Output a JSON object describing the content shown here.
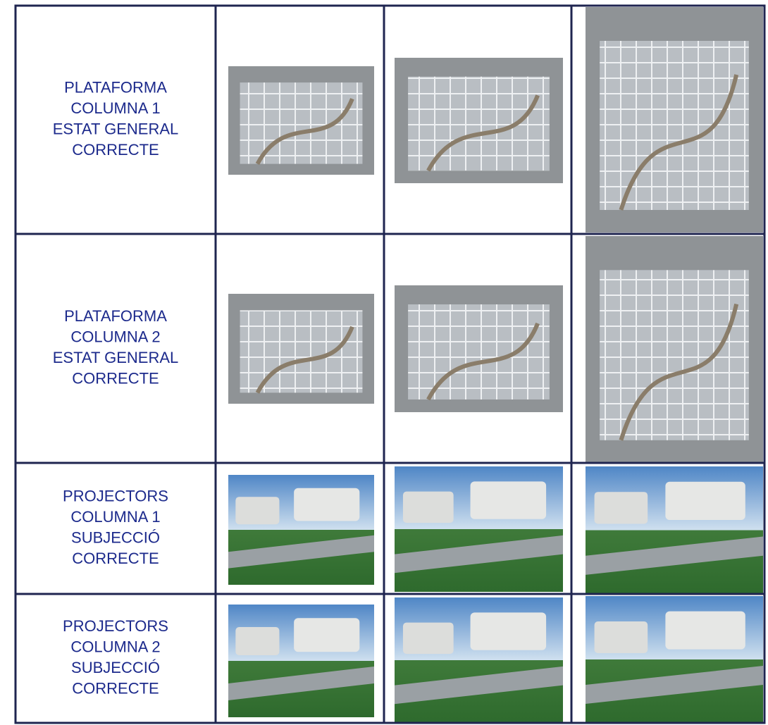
{
  "table": {
    "rows": [
      [
        "PLATAFORMA",
        "COLUMNA 1",
        "ESTAT GENERAL",
        "CORRECTE"
      ],
      [
        "PLATAFORMA",
        "COLUMNA 2",
        "ESTAT GENERAL",
        "CORRECTE"
      ],
      [
        "PROJECTORS",
        "COLUMNA 1",
        "SUBJECCIÓ",
        "CORRECTE"
      ],
      [
        "PROJECTORS",
        "COLUMNA 2",
        "SUBJECCIÓ",
        "CORRECTE"
      ]
    ]
  }
}
